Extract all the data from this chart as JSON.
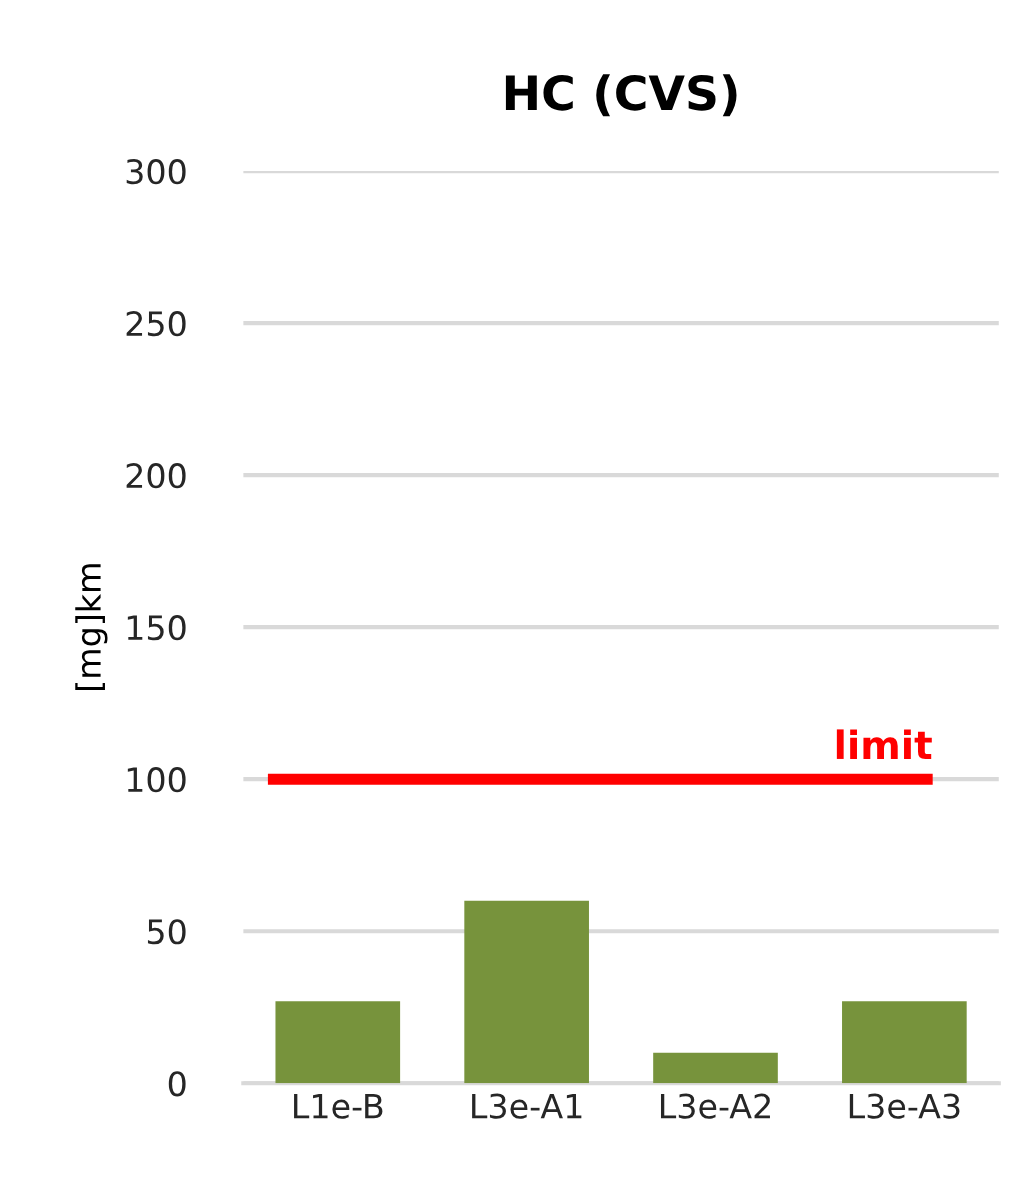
{
  "chart_data": {
    "type": "bar",
    "title": "HC (CVS)",
    "ylabel": "[mg]km",
    "categories": [
      "L1e-B",
      "L3e-A1",
      "L3e-A2",
      "L3e-A3"
    ],
    "values": [
      27,
      60,
      10,
      27
    ],
    "color": "#77933c",
    "ylim": [
      0,
      300
    ],
    "yticks": [
      0,
      50,
      100,
      150,
      200,
      250,
      300
    ],
    "grid": "y",
    "ref_lines": [
      {
        "axis": "y",
        "value": 100,
        "label": "limit",
        "color": "#ff0000"
      }
    ]
  }
}
